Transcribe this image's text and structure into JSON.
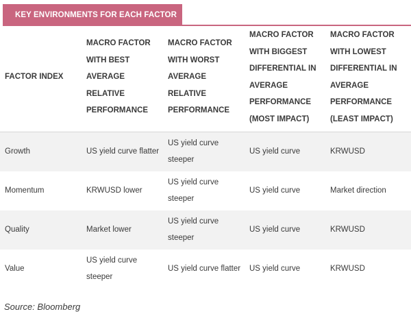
{
  "title": "KEY ENVIRONMENTS FOR EACH FACTOR",
  "headers": [
    "FACTOR INDEX",
    "MACRO FACTOR WITH BEST AVERAGE RELATIVE PERFORMANCE",
    "MACRO FACTOR WITH WORST AVERAGE RELATIVE PERFORMANCE",
    "MACRO FACTOR WITH BIGGEST DIFFERENTIAL IN AVERAGE PERFORMANCE (MOST IMPACT)",
    "MACRO FACTOR WITH LOWEST DIFFERENTIAL IN AVERAGE PERFORMANCE (LEAST IMPACT)"
  ],
  "rows": [
    [
      "Growth",
      "US yield curve flatter",
      "US yield curve steeper",
      "US yield curve",
      "KRWUSD"
    ],
    [
      "Momentum",
      "KRWUSD lower",
      "US yield curve steeper",
      "US yield curve",
      "Market direction"
    ],
    [
      "Quality",
      "Market lower",
      "US yield curve steeper",
      "US yield curve",
      "KRWUSD"
    ],
    [
      "Value",
      "US yield curve steeper",
      "US yield curve flatter",
      "US yield curve",
      "KRWUSD"
    ]
  ],
  "source": "Source: Bloomberg",
  "colors": {
    "accent": "#c9657f",
    "stripe": "#f2f2f2",
    "text": "#3a3a3a"
  }
}
